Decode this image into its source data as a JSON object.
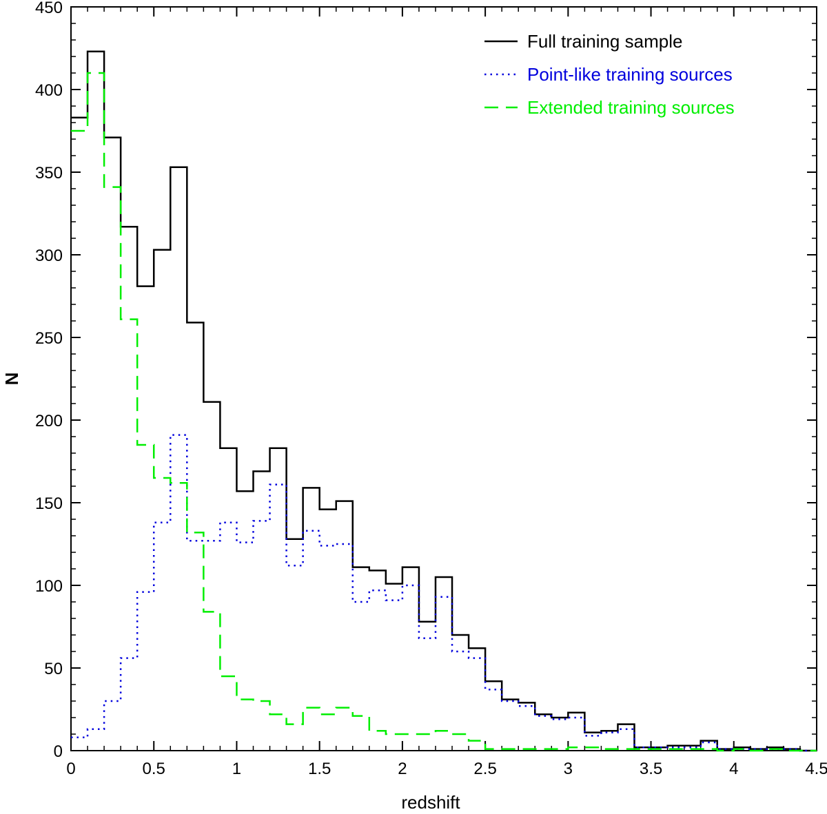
{
  "chart_data": {
    "type": "line",
    "style": "step-histogram",
    "xlabel": "redshift",
    "ylabel": "N",
    "xlim": [
      0,
      4.5
    ],
    "ylim": [
      0,
      450
    ],
    "xticks": [
      0,
      0.5,
      1,
      1.5,
      2,
      2.5,
      3,
      3.5,
      4,
      4.5
    ],
    "xtick_labels": [
      "0",
      "0.5",
      "1",
      "1.5",
      "2",
      "2.5",
      "3",
      "3.5",
      "4",
      "4.5"
    ],
    "yticks": [
      0,
      50,
      100,
      150,
      200,
      250,
      300,
      350,
      400,
      450
    ],
    "ytick_labels": [
      "0",
      "50",
      "100",
      "150",
      "200",
      "250",
      "300",
      "350",
      "400",
      "450"
    ],
    "grid": false,
    "legend_position": "top-right",
    "bin_edges": [
      0,
      0.1,
      0.2,
      0.3,
      0.4,
      0.5,
      0.6,
      0.7,
      0.8,
      0.9,
      1.0,
      1.1,
      1.2,
      1.3,
      1.4,
      1.5,
      1.6,
      1.7,
      1.8,
      1.9,
      2.0,
      2.1,
      2.2,
      2.3,
      2.4,
      2.5,
      2.6,
      2.7,
      2.8,
      2.9,
      3.0,
      3.1,
      3.2,
      3.3,
      3.4,
      3.5,
      3.6,
      3.7,
      3.8,
      3.9,
      4.0,
      4.1,
      4.2,
      4.3,
      4.4,
      4.5
    ],
    "series": [
      {
        "name": "Full training sample",
        "color": "#000000",
        "line_style": "solid",
        "values": [
          383,
          423,
          371,
          317,
          281,
          303,
          353,
          259,
          211,
          183,
          157,
          169,
          183,
          128,
          159,
          146,
          151,
          111,
          109,
          101,
          111,
          78,
          105,
          70,
          62,
          42,
          31,
          29,
          22,
          20,
          23,
          11,
          12,
          16,
          2,
          2,
          3,
          3,
          6,
          1,
          2,
          1,
          2,
          1,
          0
        ]
      },
      {
        "name": "Point-like training sources",
        "color": "#0000dd",
        "line_style": "dotted",
        "values": [
          8,
          13,
          30,
          56,
          96,
          138,
          191,
          127,
          127,
          138,
          126,
          139,
          161,
          112,
          133,
          124,
          125,
          90,
          97,
          91,
          100,
          68,
          93,
          60,
          56,
          37,
          30,
          27,
          21,
          19,
          20,
          9,
          11,
          13,
          2,
          2,
          2,
          2,
          5,
          1,
          1,
          1,
          1,
          1,
          0
        ]
      },
      {
        "name": "Extended training sources",
        "color": "#00ee00",
        "line_style": "dashed",
        "values": [
          375,
          410,
          341,
          261,
          185,
          165,
          162,
          132,
          84,
          45,
          31,
          30,
          22,
          16,
          26,
          22,
          26,
          21,
          12,
          10,
          10,
          10,
          12,
          10,
          6,
          1,
          1,
          1,
          1,
          1,
          2,
          2,
          1,
          1,
          1,
          1,
          1,
          1,
          1,
          0,
          1,
          0,
          1,
          0,
          0
        ]
      }
    ]
  }
}
